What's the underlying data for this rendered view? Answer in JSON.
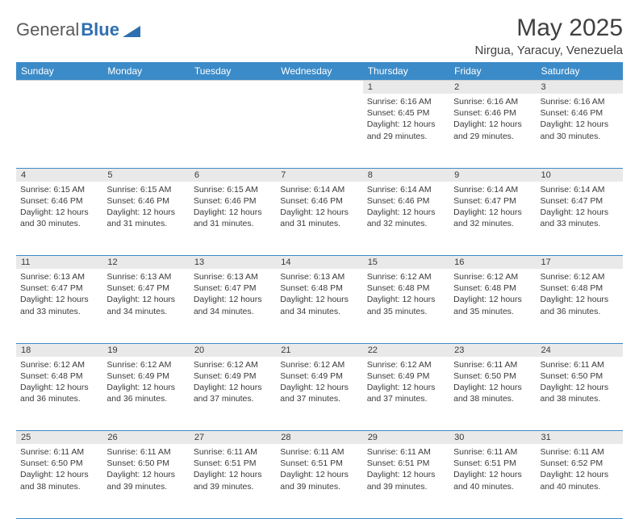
{
  "logo": {
    "text_a": "General",
    "text_b": "Blue",
    "triangle_color": "#2f6fb0"
  },
  "header": {
    "month_title": "May 2025",
    "location": "Nirgua, Yaracuy, Venezuela"
  },
  "colors": {
    "header_bg": "#3b8bc8",
    "header_fg": "#ffffff",
    "daynum_bg": "#e9e9e9",
    "rule": "#3b8bc8"
  },
  "weekdays": [
    "Sunday",
    "Monday",
    "Tuesday",
    "Wednesday",
    "Thursday",
    "Friday",
    "Saturday"
  ],
  "weeks": [
    [
      null,
      null,
      null,
      null,
      {
        "n": "1",
        "sr": "Sunrise: 6:16 AM",
        "ss": "Sunset: 6:45 PM",
        "dl": "Daylight: 12 hours and 29 minutes."
      },
      {
        "n": "2",
        "sr": "Sunrise: 6:16 AM",
        "ss": "Sunset: 6:46 PM",
        "dl": "Daylight: 12 hours and 29 minutes."
      },
      {
        "n": "3",
        "sr": "Sunrise: 6:16 AM",
        "ss": "Sunset: 6:46 PM",
        "dl": "Daylight: 12 hours and 30 minutes."
      }
    ],
    [
      {
        "n": "4",
        "sr": "Sunrise: 6:15 AM",
        "ss": "Sunset: 6:46 PM",
        "dl": "Daylight: 12 hours and 30 minutes."
      },
      {
        "n": "5",
        "sr": "Sunrise: 6:15 AM",
        "ss": "Sunset: 6:46 PM",
        "dl": "Daylight: 12 hours and 31 minutes."
      },
      {
        "n": "6",
        "sr": "Sunrise: 6:15 AM",
        "ss": "Sunset: 6:46 PM",
        "dl": "Daylight: 12 hours and 31 minutes."
      },
      {
        "n": "7",
        "sr": "Sunrise: 6:14 AM",
        "ss": "Sunset: 6:46 PM",
        "dl": "Daylight: 12 hours and 31 minutes."
      },
      {
        "n": "8",
        "sr": "Sunrise: 6:14 AM",
        "ss": "Sunset: 6:46 PM",
        "dl": "Daylight: 12 hours and 32 minutes."
      },
      {
        "n": "9",
        "sr": "Sunrise: 6:14 AM",
        "ss": "Sunset: 6:47 PM",
        "dl": "Daylight: 12 hours and 32 minutes."
      },
      {
        "n": "10",
        "sr": "Sunrise: 6:14 AM",
        "ss": "Sunset: 6:47 PM",
        "dl": "Daylight: 12 hours and 33 minutes."
      }
    ],
    [
      {
        "n": "11",
        "sr": "Sunrise: 6:13 AM",
        "ss": "Sunset: 6:47 PM",
        "dl": "Daylight: 12 hours and 33 minutes."
      },
      {
        "n": "12",
        "sr": "Sunrise: 6:13 AM",
        "ss": "Sunset: 6:47 PM",
        "dl": "Daylight: 12 hours and 34 minutes."
      },
      {
        "n": "13",
        "sr": "Sunrise: 6:13 AM",
        "ss": "Sunset: 6:47 PM",
        "dl": "Daylight: 12 hours and 34 minutes."
      },
      {
        "n": "14",
        "sr": "Sunrise: 6:13 AM",
        "ss": "Sunset: 6:48 PM",
        "dl": "Daylight: 12 hours and 34 minutes."
      },
      {
        "n": "15",
        "sr": "Sunrise: 6:12 AM",
        "ss": "Sunset: 6:48 PM",
        "dl": "Daylight: 12 hours and 35 minutes."
      },
      {
        "n": "16",
        "sr": "Sunrise: 6:12 AM",
        "ss": "Sunset: 6:48 PM",
        "dl": "Daylight: 12 hours and 35 minutes."
      },
      {
        "n": "17",
        "sr": "Sunrise: 6:12 AM",
        "ss": "Sunset: 6:48 PM",
        "dl": "Daylight: 12 hours and 36 minutes."
      }
    ],
    [
      {
        "n": "18",
        "sr": "Sunrise: 6:12 AM",
        "ss": "Sunset: 6:48 PM",
        "dl": "Daylight: 12 hours and 36 minutes."
      },
      {
        "n": "19",
        "sr": "Sunrise: 6:12 AM",
        "ss": "Sunset: 6:49 PM",
        "dl": "Daylight: 12 hours and 36 minutes."
      },
      {
        "n": "20",
        "sr": "Sunrise: 6:12 AM",
        "ss": "Sunset: 6:49 PM",
        "dl": "Daylight: 12 hours and 37 minutes."
      },
      {
        "n": "21",
        "sr": "Sunrise: 6:12 AM",
        "ss": "Sunset: 6:49 PM",
        "dl": "Daylight: 12 hours and 37 minutes."
      },
      {
        "n": "22",
        "sr": "Sunrise: 6:12 AM",
        "ss": "Sunset: 6:49 PM",
        "dl": "Daylight: 12 hours and 37 minutes."
      },
      {
        "n": "23",
        "sr": "Sunrise: 6:11 AM",
        "ss": "Sunset: 6:50 PM",
        "dl": "Daylight: 12 hours and 38 minutes."
      },
      {
        "n": "24",
        "sr": "Sunrise: 6:11 AM",
        "ss": "Sunset: 6:50 PM",
        "dl": "Daylight: 12 hours and 38 minutes."
      }
    ],
    [
      {
        "n": "25",
        "sr": "Sunrise: 6:11 AM",
        "ss": "Sunset: 6:50 PM",
        "dl": "Daylight: 12 hours and 38 minutes."
      },
      {
        "n": "26",
        "sr": "Sunrise: 6:11 AM",
        "ss": "Sunset: 6:50 PM",
        "dl": "Daylight: 12 hours and 39 minutes."
      },
      {
        "n": "27",
        "sr": "Sunrise: 6:11 AM",
        "ss": "Sunset: 6:51 PM",
        "dl": "Daylight: 12 hours and 39 minutes."
      },
      {
        "n": "28",
        "sr": "Sunrise: 6:11 AM",
        "ss": "Sunset: 6:51 PM",
        "dl": "Daylight: 12 hours and 39 minutes."
      },
      {
        "n": "29",
        "sr": "Sunrise: 6:11 AM",
        "ss": "Sunset: 6:51 PM",
        "dl": "Daylight: 12 hours and 39 minutes."
      },
      {
        "n": "30",
        "sr": "Sunrise: 6:11 AM",
        "ss": "Sunset: 6:51 PM",
        "dl": "Daylight: 12 hours and 40 minutes."
      },
      {
        "n": "31",
        "sr": "Sunrise: 6:11 AM",
        "ss": "Sunset: 6:52 PM",
        "dl": "Daylight: 12 hours and 40 minutes."
      }
    ]
  ]
}
